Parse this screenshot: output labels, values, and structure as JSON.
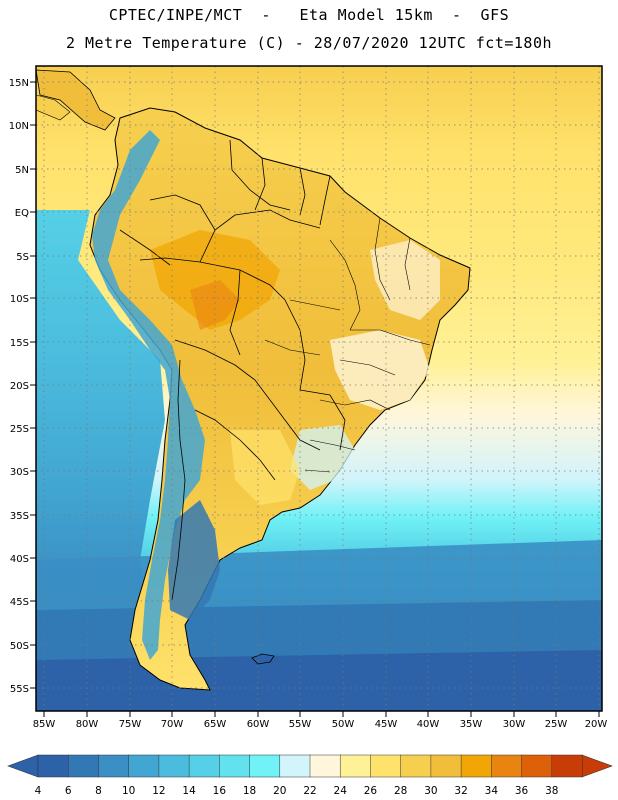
{
  "header": {
    "line1": "CPTEC/INPE/MCT  -   Eta Model 15km  -  GFS",
    "line2": "2 Metre Temperature (C) - 28/07/2020 12UTC fct=180h"
  },
  "map": {
    "lat_labels": [
      "15N",
      "10N",
      "5N",
      "EQ",
      "5S",
      "10S",
      "15S",
      "20S",
      "25S",
      "30S",
      "35S",
      "40S",
      "45S",
      "50S",
      "55S"
    ],
    "lon_labels": [
      "85W",
      "80W",
      "75W",
      "70W",
      "65W",
      "60W",
      "55W",
      "50W",
      "45W",
      "40W",
      "35W",
      "30W",
      "25W",
      "20W"
    ]
  },
  "colorbar": {
    "labels": [
      "4",
      "6",
      "8",
      "10",
      "12",
      "14",
      "16",
      "18",
      "20",
      "22",
      "24",
      "26",
      "28",
      "30",
      "32",
      "34",
      "36",
      "38"
    ],
    "colors": [
      "#2e62a8",
      "#3278b4",
      "#3a8fc4",
      "#42a6d2",
      "#4bbcdd",
      "#55d0e6",
      "#62e2ee",
      "#70f2f6",
      "#d2f4fb",
      "#fff6dc",
      "#fff196",
      "#ffe26c",
      "#f7cf4f",
      "#f0be3a",
      "#f2a606",
      "#ea8410",
      "#de6008",
      "#c83c08"
    ]
  }
}
